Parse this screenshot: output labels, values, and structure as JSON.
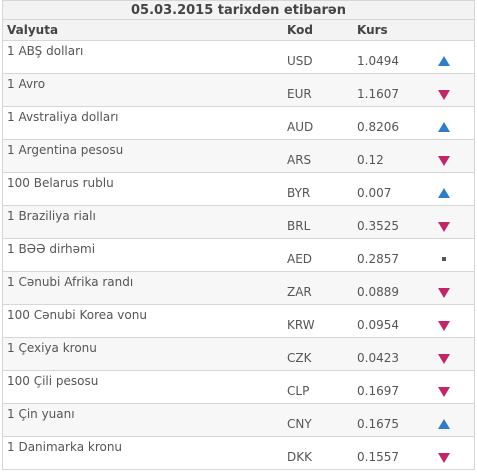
{
  "table": {
    "title": "05.03.2015 tarixdən etibarən",
    "headers": {
      "currency": "Valyuta",
      "code": "Kod",
      "rate": "Kurs"
    },
    "rows": [
      {
        "name": "1 ABŞ dolları",
        "code": "USD",
        "rate": "1.0494",
        "trend": "up"
      },
      {
        "name": "1 Avro",
        "code": "EUR",
        "rate": "1.1607",
        "trend": "down"
      },
      {
        "name": "1 Avstraliya dolları",
        "code": "AUD",
        "rate": "0.8206",
        "trend": "up"
      },
      {
        "name": "1 Argentina pesosu",
        "code": "ARS",
        "rate": "0.12",
        "trend": "down"
      },
      {
        "name": "100 Belarus rublu",
        "code": "BYR",
        "rate": "0.007",
        "trend": "up"
      },
      {
        "name": "1 Braziliya rialı",
        "code": "BRL",
        "rate": "0.3525",
        "trend": "down"
      },
      {
        "name": "1 BƏƏ dirhəmi",
        "code": "AED",
        "rate": "0.2857",
        "trend": "same"
      },
      {
        "name": "1 Cənubi Afrika randı",
        "code": "ZAR",
        "rate": "0.0889",
        "trend": "down"
      },
      {
        "name": "100 Cənubi Korea vonu",
        "code": "KRW",
        "rate": "0.0954",
        "trend": "down"
      },
      {
        "name": "1 Çexiya kronu",
        "code": "CZK",
        "rate": "0.0423",
        "trend": "down"
      },
      {
        "name": "100 Çili pesosu",
        "code": "CLP",
        "rate": "0.1697",
        "trend": "down"
      },
      {
        "name": "1 Çin yuanı",
        "code": "CNY",
        "rate": "0.1675",
        "trend": "up"
      },
      {
        "name": "1 Danimarka kronu",
        "code": "DKK",
        "rate": "0.1557",
        "trend": "down"
      }
    ]
  },
  "colors": {
    "up": "#2c7ec9",
    "down": "#c42569",
    "same": "#555555"
  },
  "icons": {
    "up": "triangle-up-icon",
    "down": "triangle-down-icon",
    "same": "square-dot-icon"
  }
}
